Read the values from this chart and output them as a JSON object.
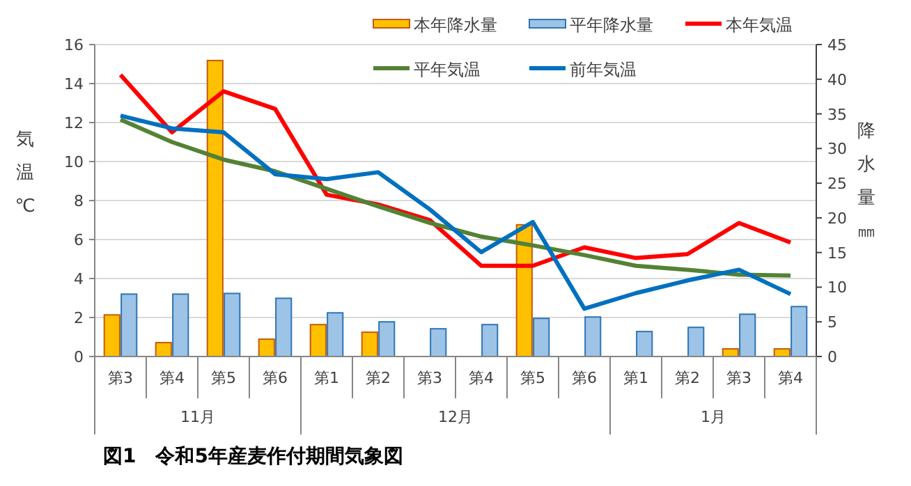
{
  "chart_data": {
    "type": "bar",
    "title": "図1　令和5年産麦作付期間気象図",
    "categories": [
      "第3",
      "第4",
      "第5",
      "第6",
      "第1",
      "第2",
      "第3",
      "第4",
      "第5",
      "第6",
      "第1",
      "第2",
      "第3",
      "第4"
    ],
    "annotations": [
      "11月",
      "12月",
      "1月"
    ],
    "ylabel": "気温℃",
    "y2label": "降水量㎜",
    "ylim": [
      0,
      16
    ],
    "yticks": [
      0,
      2,
      4,
      6,
      8,
      10,
      12,
      14,
      16
    ],
    "y2lim": [
      0,
      45
    ],
    "y2ticks": [
      0,
      5,
      10,
      15,
      20,
      25,
      30,
      35,
      40,
      45
    ],
    "grid": "y",
    "legend": "top",
    "series": [
      {
        "name": "本年降水量",
        "axis": "y2",
        "color": "#ffc000",
        "values": [
          6.0,
          2.0,
          42.7,
          2.5,
          4.6,
          3.5,
          0,
          0,
          19,
          0,
          0,
          0,
          1.1,
          1.1
        ]
      },
      {
        "name": "平年降水量",
        "axis": "y2",
        "color": "#9dc3e6",
        "values": [
          9.0,
          9.0,
          9.1,
          8.4,
          6.3,
          5.0,
          4.0,
          4.6,
          5.5,
          5.7,
          3.6,
          4.2,
          6.1,
          7.2
        ]
      },
      {
        "name": "本年気温",
        "type": "line",
        "color": "#ff0000",
        "values": [
          14.45,
          11.5,
          13.6,
          12.7,
          8.3,
          7.8,
          7.0,
          4.65,
          4.65,
          5.6,
          5.05,
          5.25,
          6.85,
          5.85
        ]
      },
      {
        "name": "平年気温",
        "type": "line",
        "color": "#548235",
        "values": [
          12.15,
          11.0,
          10.1,
          9.5,
          8.6,
          7.7,
          6.85,
          6.15,
          5.7,
          5.2,
          4.65,
          4.45,
          4.2,
          4.15
        ]
      },
      {
        "name": "前年気温",
        "type": "line",
        "color": "#0070c0",
        "values": [
          12.35,
          11.7,
          11.5,
          9.35,
          9.1,
          9.45,
          7.55,
          5.35,
          6.9,
          2.45,
          3.25,
          3.9,
          4.45,
          3.2
        ]
      }
    ]
  }
}
